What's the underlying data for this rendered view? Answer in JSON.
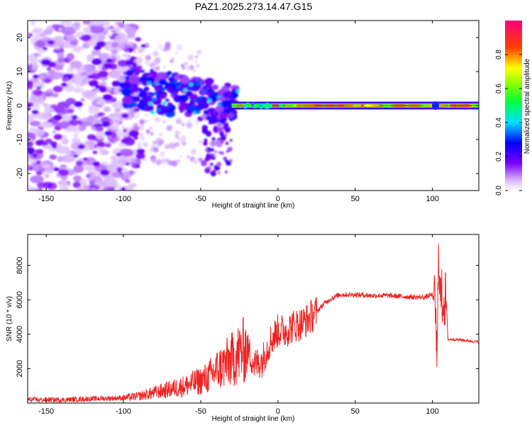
{
  "title": "PAZ1.2025.273.14.47.G15",
  "colors": {
    "line": "#ee2222",
    "axis": "#000000"
  },
  "chart_data": [
    {
      "type": "heatmap",
      "title": "PAZ1.2025.273.14.47.G15",
      "xlabel": "Height of straight line (km)",
      "ylabel": "Frequency (Hz)",
      "xlim": [
        -162,
        130
      ],
      "ylim": [
        -25,
        25
      ],
      "xticks": [
        -150,
        -100,
        -50,
        0,
        50,
        100
      ],
      "yticks": [
        -20,
        -10,
        0,
        10,
        20
      ],
      "colorbar": {
        "label": "Normalized spectral amplitude",
        "range": [
          0.0,
          1.0
        ],
        "ticks": [
          "0.0",
          "0.2",
          "0.4",
          "0.6",
          "0.8"
        ],
        "colormap": "rainbow (purple-blue-cyan-green-yellow-red-magenta)"
      },
      "description_points": [
        {
          "height_km": -140,
          "freq_hz": 0,
          "amp": 0.15
        },
        {
          "height_km": -80,
          "freq_hz": 5,
          "amp": 0.25
        },
        {
          "height_km": -55,
          "freq_hz": 3,
          "amp": 0.3
        },
        {
          "height_km": -40,
          "freq_hz": -8,
          "amp": 0.2
        },
        {
          "height_km": 0,
          "freq_hz": 0,
          "amp": 0.8
        },
        {
          "height_km": 50,
          "freq_hz": 0,
          "amp": 0.9
        },
        {
          "height_km": 100,
          "freq_hz": 0,
          "amp": 0.85
        }
      ]
    },
    {
      "type": "line",
      "xlabel": "Height of straight line (km)",
      "ylabel": "SNR (10 * v/v)",
      "xlim": [
        -162,
        130
      ],
      "ylim": [
        0,
        9800
      ],
      "xticks": [
        -150,
        -100,
        -50,
        0,
        50,
        100
      ],
      "yticks": [
        2000,
        4000,
        6000,
        8000
      ],
      "series": [
        {
          "name": "SNR",
          "x": [
            -162,
            -140,
            -120,
            -100,
            -90,
            -80,
            -70,
            -60,
            -50,
            -45,
            -40,
            -35,
            -30,
            -25,
            -20,
            -15,
            -10,
            -5,
            0,
            5,
            10,
            15,
            20,
            25,
            30,
            35,
            40,
            50,
            60,
            70,
            80,
            90,
            95,
            100,
            102,
            103,
            104,
            105,
            106,
            108,
            109,
            110,
            115,
            120,
            125,
            130
          ],
          "y": [
            200,
            180,
            250,
            300,
            400,
            600,
            800,
            1000,
            1300,
            1500,
            1900,
            2200,
            2500,
            2900,
            3200,
            2200,
            2500,
            3600,
            4200,
            4200,
            4500,
            4600,
            4900,
            5300,
            5800,
            6100,
            6300,
            6300,
            6250,
            6250,
            6200,
            6150,
            6150,
            6300,
            5500,
            1800,
            9600,
            6100,
            6100,
            6000,
            6000,
            3700,
            3700,
            3650,
            3600,
            3550
          ]
        }
      ]
    }
  ]
}
